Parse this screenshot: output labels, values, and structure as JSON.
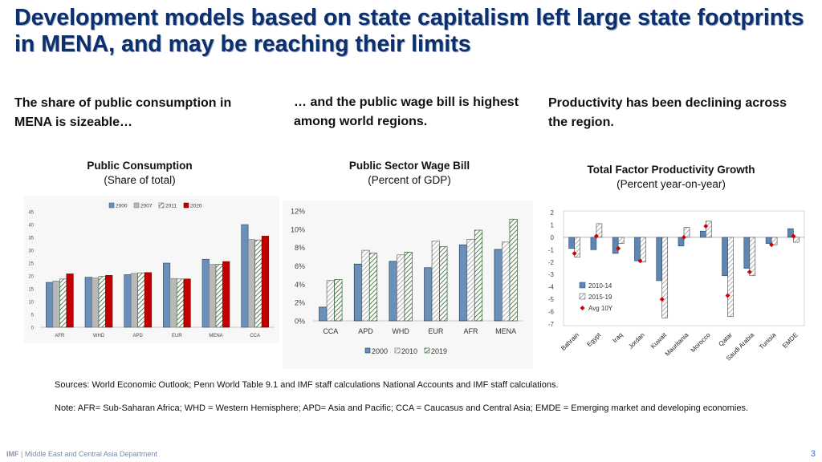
{
  "slide": {
    "title": "Development models based on state capitalism left large state footprints in MENA, and may be reaching their limits",
    "sub1": "The share of public consumption in MENA is sizeable…",
    "sub2": "… and the public wage bill is highest among world regions.",
    "sub3": "Productivity has been declining across the region.",
    "sources": "Sources: World Economic Outlook; Penn World Table 9.1 and IMF staff calculations National Accounts and IMF staff calculations.",
    "note": "Note: AFR= Sub-Saharan Africa; WHD = Western Hemisphere; APD= Asia and Pacific; CCA = Caucasus and Central Asia; EMDE = Emerging market and developing economies.",
    "footer_org": "IMF",
    "footer_dept": " | Middle East and Central Asia Department",
    "page_number": "3"
  },
  "colors": {
    "title": "#0d2f6b",
    "s2000": "#6a8fb8",
    "s2007": "#b8b8b8",
    "s2011_hatch": "#2e5f2e",
    "s2020": "#c00000",
    "tfp_2010": "#5d86b3",
    "tfp_2015": "#9a9a9a",
    "avg": "#d00000"
  },
  "chart_data": [
    {
      "type": "bar",
      "title": "Public Consumption",
      "subtitle": "(Share of total)",
      "categories": [
        "AFR",
        "WHD",
        "APD",
        "EUR",
        "MENA",
        "CCA"
      ],
      "series": [
        {
          "name": "2000",
          "values": [
            17.5,
            19.5,
            20.5,
            25,
            26.5,
            40
          ]
        },
        {
          "name": "2007",
          "values": [
            18,
            19.2,
            21,
            19,
            24.5,
            34.2
          ]
        },
        {
          "name": "2011",
          "values": [
            18.8,
            19.8,
            21.2,
            18.8,
            24.5,
            34
          ]
        },
        {
          "name": "2020",
          "values": [
            20.8,
            20.2,
            21.3,
            18.8,
            25.6,
            35.5
          ]
        }
      ],
      "yticks": [
        "0",
        "5",
        "10",
        "15",
        "20",
        "25",
        "30",
        "35",
        "40",
        "45"
      ],
      "ylim": [
        0,
        45
      ]
    },
    {
      "type": "bar",
      "title": "Public Sector Wage Bill",
      "subtitle": "(Percent of GDP)",
      "categories": [
        "CCA",
        "APD",
        "WHD",
        "EUR",
        "AFR",
        "MENA"
      ],
      "series": [
        {
          "name": "2000",
          "values": [
            1.5,
            6.2,
            6.5,
            5.8,
            8.3,
            7.8
          ]
        },
        {
          "name": "2010",
          "values": [
            4.4,
            7.7,
            7.2,
            8.7,
            8.9,
            8.6
          ]
        },
        {
          "name": "2019",
          "values": [
            4.5,
            7.4,
            7.5,
            8.1,
            9.9,
            11.1
          ]
        }
      ],
      "yticks": [
        "0%",
        "2%",
        "4%",
        "6%",
        "8%",
        "10%",
        "12%"
      ],
      "ylim": [
        0,
        12
      ]
    },
    {
      "type": "bar",
      "title": "Total Factor Productivity Growth",
      "subtitle": "(Percent year-on-year)",
      "categories": [
        "Bahrain",
        "Egypt",
        "Iraq",
        "Jordan",
        "Kuwait",
        "Mauritania",
        "Morocco",
        "Qatar",
        "Saudi Arabia",
        "Tunisia",
        "EMDE"
      ],
      "series": [
        {
          "name": "2010-14",
          "values": [
            -0.9,
            -1.0,
            -1.3,
            -1.9,
            -3.5,
            -0.7,
            0.5,
            -3.1,
            -2.5,
            -0.5,
            0.7
          ]
        },
        {
          "name": "2015-19",
          "values": [
            -1.6,
            1.1,
            -0.5,
            -2.0,
            -6.5,
            0.8,
            1.3,
            -6.4,
            -3.1,
            -0.6,
            -0.4
          ]
        },
        {
          "name": "Avg 10Y",
          "values": [
            -1.3,
            0.1,
            -0.9,
            -1.9,
            -5.0,
            0.0,
            0.9,
            -4.7,
            -2.8,
            -0.6,
            0.1
          ]
        }
      ],
      "yticks": [
        "2",
        "1",
        "0",
        "-1",
        "-2",
        "-3",
        "-4",
        "-5",
        "-6",
        "-7"
      ],
      "ylim": [
        -7,
        2
      ]
    }
  ]
}
